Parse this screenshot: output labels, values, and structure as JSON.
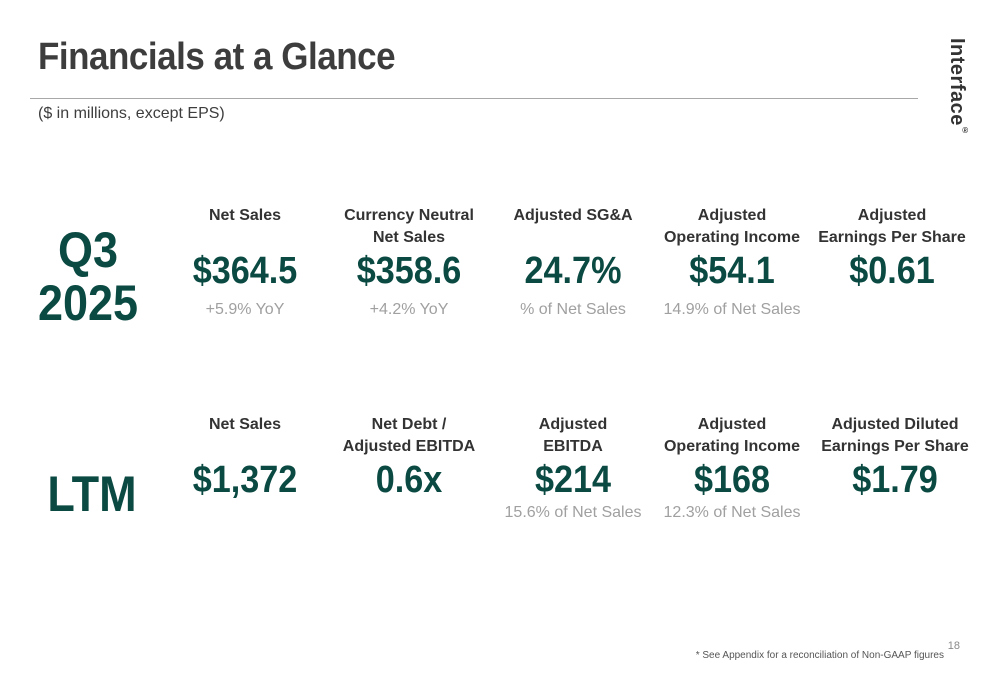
{
  "header": {
    "title": "Financials at a Glance",
    "subtitle": "($ in millions, except EPS)",
    "logo_text": "Interface",
    "logo_mark": "®"
  },
  "q3": {
    "period": "Q3\n2025",
    "metrics": [
      {
        "label": "Net Sales",
        "value": "$364.5",
        "note": "+5.9% YoY"
      },
      {
        "label": "Currency Neutral\nNet Sales",
        "value": "$358.6",
        "note": "+4.2% YoY"
      },
      {
        "label": "Adjusted SG&A",
        "value": "24.7%",
        "note": "% of Net Sales"
      },
      {
        "label": "Adjusted\nOperating Income",
        "value": "$54.1",
        "note": "14.9% of Net Sales"
      },
      {
        "label": "Adjusted\nEarnings Per Share",
        "value": "$0.61",
        "note": ""
      }
    ]
  },
  "ltm": {
    "period": "LTM",
    "metrics": [
      {
        "label": "Net Sales",
        "value": "$1,372",
        "note": ""
      },
      {
        "label": "Net Debt /\nAdjusted EBITDA",
        "value": "0.6x",
        "note": ""
      },
      {
        "label": "Adjusted\nEBITDA",
        "value": "$214",
        "note": "15.6% of Net Sales"
      },
      {
        "label": "Adjusted\nOperating Income",
        "value": "$168",
        "note": "12.3% of Net Sales"
      },
      {
        "label": "Adjusted Diluted\nEarnings Per Share",
        "value": "$1.79",
        "note": ""
      }
    ]
  },
  "footer": {
    "footnote": "* See Appendix for a reconciliation of Non-GAAP figures",
    "page_number": "18"
  },
  "colors": {
    "accent": "#0b4a43",
    "title": "#3d3d3d",
    "note": "#a0a0a0"
  }
}
